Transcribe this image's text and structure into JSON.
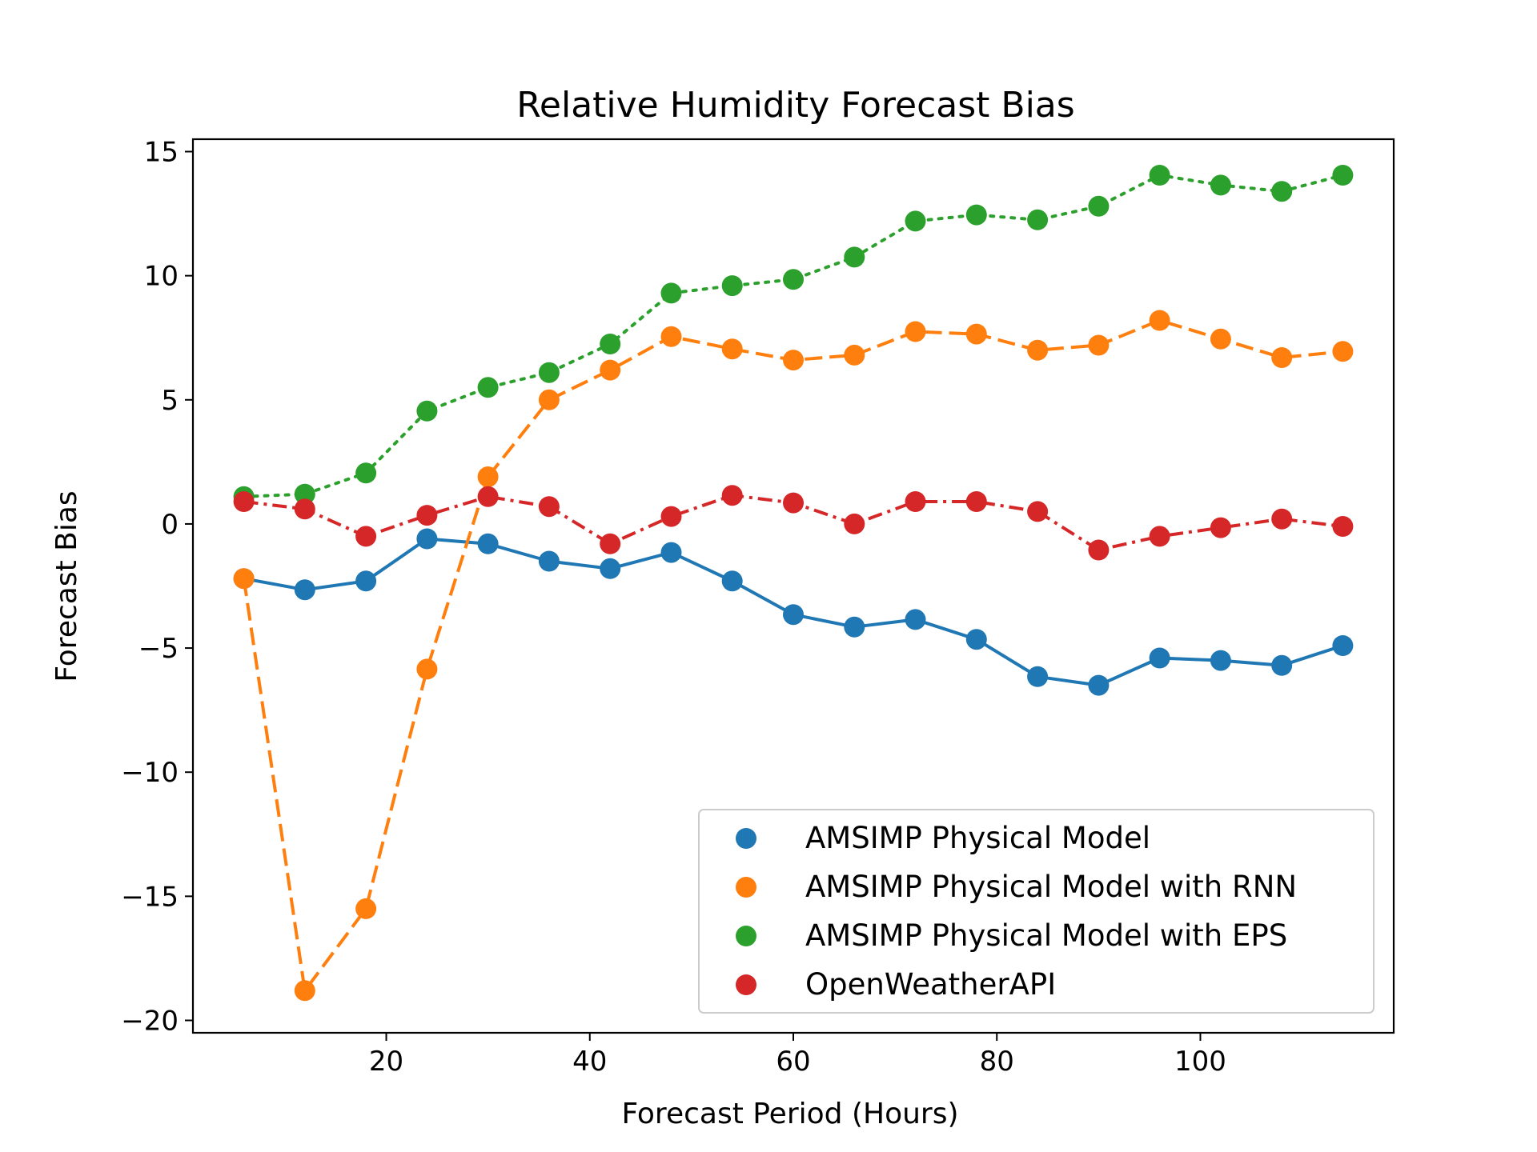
{
  "chart_data": {
    "type": "line",
    "title": "Relative Humidity Forecast Bias",
    "xlabel": "Forecast Period (Hours)",
    "ylabel": "Forecast Bias",
    "xlim": [
      1,
      119
    ],
    "ylim": [
      -20.5,
      15.5
    ],
    "xticks": [
      20,
      40,
      60,
      80,
      100
    ],
    "xtick_labels": [
      "20",
      "40",
      "60",
      "80",
      "100"
    ],
    "yticks": [
      -20,
      -15,
      -10,
      -5,
      0,
      5,
      10,
      15
    ],
    "ytick_labels": [
      "−20",
      "−15",
      "−10",
      "−5",
      "0",
      "5",
      "10",
      "15"
    ],
    "grid": false,
    "legend_position": "lower-right",
    "x": [
      6,
      12,
      18,
      24,
      30,
      36,
      42,
      48,
      54,
      60,
      66,
      72,
      78,
      84,
      90,
      96,
      102,
      108,
      114
    ],
    "series": [
      {
        "name": "AMSIMP Physical Model",
        "color": "#1f77b4",
        "line_style": "solid",
        "values": [
          -2.2,
          -2.65,
          -2.3,
          -0.6,
          -0.8,
          -1.5,
          -1.8,
          -1.15,
          -2.3,
          -3.65,
          -4.15,
          -3.85,
          -4.65,
          -6.15,
          -6.5,
          -5.4,
          -5.5,
          -5.7,
          -4.9
        ]
      },
      {
        "name": "AMSIMP Physical Model with RNN",
        "color": "#ff7f0e",
        "line_style": "dashed",
        "values": [
          -2.2,
          -18.8,
          -15.5,
          -5.85,
          1.9,
          5.0,
          6.2,
          7.55,
          7.05,
          6.6,
          6.8,
          7.75,
          7.65,
          7.0,
          7.2,
          8.2,
          7.45,
          6.7,
          6.95
        ]
      },
      {
        "name": "AMSIMP Physical Model with EPS",
        "color": "#2ca02c",
        "line_style": "dotted",
        "values": [
          1.1,
          1.2,
          2.05,
          4.55,
          5.5,
          6.1,
          7.25,
          9.3,
          9.6,
          9.85,
          10.75,
          12.2,
          12.45,
          12.25,
          12.8,
          14.05,
          13.65,
          13.4,
          14.05
        ]
      },
      {
        "name": "OpenWeatherAPI",
        "color": "#d62728",
        "line_style": "dashdot",
        "values": [
          0.9,
          0.6,
          -0.5,
          0.35,
          1.1,
          0.7,
          -0.8,
          0.3,
          1.15,
          0.85,
          0.0,
          0.9,
          0.9,
          0.5,
          -1.05,
          -0.5,
          -0.15,
          0.2,
          -0.1
        ]
      }
    ]
  }
}
